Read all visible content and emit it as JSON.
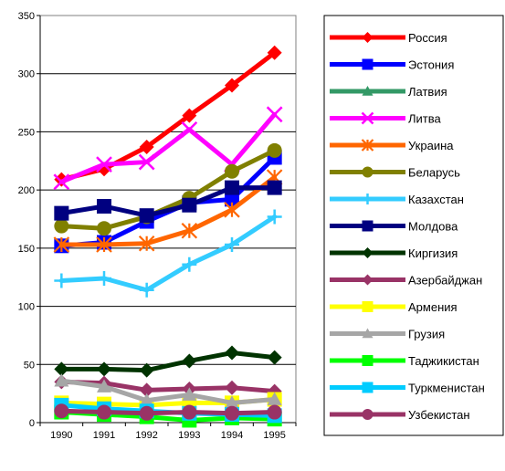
{
  "chart_data": {
    "type": "line",
    "title": "",
    "xlabel": "",
    "ylabel": "",
    "x": [
      "1990",
      "1991",
      "1992",
      "1993",
      "1994",
      "1995"
    ],
    "ylim": [
      0,
      350
    ],
    "yticks": [
      "0",
      "50",
      "100",
      "150",
      "200",
      "250",
      "300",
      "350"
    ],
    "grid": "horizontal",
    "legend": "right",
    "series": [
      {
        "name": "Россия",
        "color": "#ff0000",
        "marker": "diamond",
        "values": [
          209,
          218,
          237,
          264,
          290,
          318
        ]
      },
      {
        "name": "Эстония",
        "color": "#0000ff",
        "marker": "square",
        "values": [
          152,
          155,
          173,
          189,
          192,
          228
        ]
      },
      {
        "name": "Латвия",
        "color": "#339966",
        "marker": "triangle",
        "values": [
          null,
          null,
          null,
          null,
          null,
          null
        ]
      },
      {
        "name": "Литва",
        "color": "#ff00ff",
        "marker": "x",
        "values": [
          207,
          222,
          224,
          252,
          222,
          265
        ]
      },
      {
        "name": "Украина",
        "color": "#ff6600",
        "marker": "asterisk",
        "values": [
          153,
          153,
          154,
          165,
          183,
          211
        ]
      },
      {
        "name": "Беларусь",
        "color": "#808000",
        "marker": "circle",
        "values": [
          169,
          167,
          177,
          193,
          216,
          234
        ]
      },
      {
        "name": "Казахстан",
        "color": "#33ccff",
        "marker": "plus",
        "values": [
          122,
          124,
          114,
          136,
          153,
          177
        ]
      },
      {
        "name": "Молдова",
        "color": "#000080",
        "marker": "square",
        "values": [
          180,
          186,
          178,
          187,
          202,
          202
        ]
      },
      {
        "name": "Киргизия",
        "color": "#003300",
        "marker": "diamond",
        "values": [
          46,
          46,
          45,
          53,
          60,
          56
        ]
      },
      {
        "name": "Азербайджан",
        "color": "#993366",
        "marker": "diamond",
        "values": [
          35,
          34,
          28,
          29,
          30,
          27
        ]
      },
      {
        "name": "Армения",
        "color": "#ffff00",
        "marker": "square",
        "values": [
          17,
          16,
          15,
          17,
          17,
          20
        ]
      },
      {
        "name": "Грузия",
        "color": "#a6a6a6",
        "marker": "triangle",
        "values": [
          36,
          31,
          19,
          24,
          17,
          20
        ]
      },
      {
        "name": "Таджикистан",
        "color": "#00ff00",
        "marker": "square",
        "values": [
          9,
          7,
          5,
          2,
          4,
          3
        ]
      },
      {
        "name": "Туркменистан",
        "color": "#00ccff",
        "marker": "square",
        "values": [
          15,
          12,
          10,
          8,
          7,
          6
        ]
      },
      {
        "name": "Узбекистан",
        "color": "#993366",
        "marker": "circle",
        "values": [
          10,
          9,
          8,
          9,
          8,
          9
        ]
      }
    ]
  }
}
